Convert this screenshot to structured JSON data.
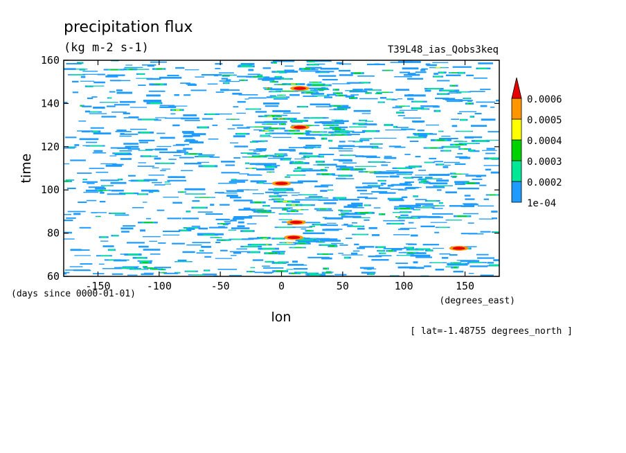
{
  "chart_data": {
    "type": "heatmap",
    "title": "precipitation flux",
    "units": "(kg m-2 s-1)",
    "experiment": "T39L48_ias_Qobs3keq",
    "xlabel": "lon",
    "ylabel": "time",
    "x_units": "(degrees_east)",
    "y_units": "(days since 0000-01-01)",
    "slice_note": "[ lat=-1.48755 degrees_north ]",
    "xlim": [
      -178,
      178
    ],
    "ylim": [
      60,
      160
    ],
    "xticks": [
      -150,
      -100,
      -50,
      0,
      50,
      100,
      150
    ],
    "xtick_labels": [
      "-150",
      "-100",
      "-50",
      "0",
      "50",
      "100",
      "150"
    ],
    "yticks": [
      60,
      80,
      100,
      120,
      140,
      160
    ],
    "ytick_labels": [
      "60",
      "80",
      "100",
      "120",
      "140",
      "160"
    ],
    "colorbar": {
      "levels": [
        0.0001,
        0.0002,
        0.0003,
        0.0004,
        0.0005,
        0.0006
      ],
      "labels": [
        "1e-04",
        "0.0002",
        "0.0003",
        "0.0004",
        "0.0005",
        "0.0006"
      ],
      "colors": [
        "#1e9bff",
        "#00e896",
        "#00d200",
        "#ffff00",
        "#ff9600",
        "#e60000"
      ],
      "extend": "max"
    },
    "features": {
      "band_character": "zonally elongated streaks of rainfall, denser near lon 0",
      "max_locations": [
        {
          "lon": 12,
          "time": 85
        },
        {
          "lon": 10,
          "time": 78
        },
        {
          "lon": 145,
          "time": 73
        },
        {
          "lon": 0,
          "time": 103
        },
        {
          "lon": 15,
          "time": 129
        },
        {
          "lon": 15,
          "time": 147
        }
      ]
    }
  }
}
